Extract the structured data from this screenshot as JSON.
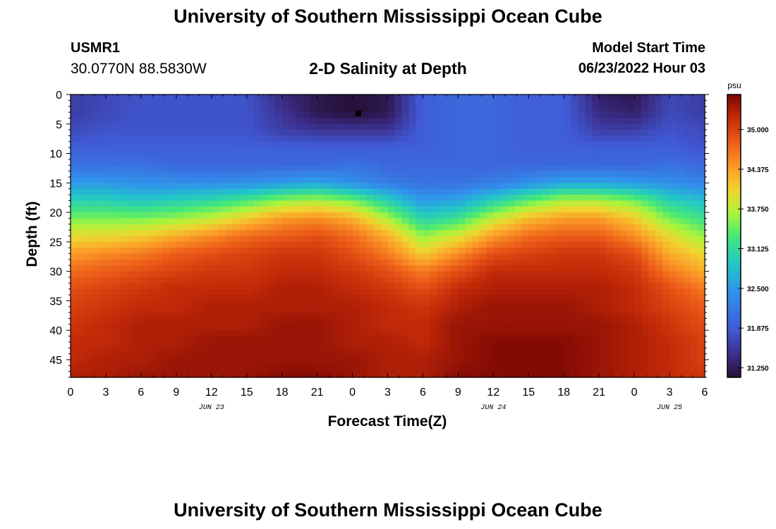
{
  "header": {
    "title": "University of Southern Mississippi Ocean Cube",
    "station_id": "USMR1",
    "station_coords": "30.0770N  88.5830W",
    "plot_title": "2-D Salinity at Depth",
    "start_label": "Model Start Time",
    "start_value": "06/23/2022 Hour 03"
  },
  "footer": {
    "title": "University of Southern Mississippi Ocean Cube"
  },
  "chart_data": {
    "type": "heatmap",
    "title": "2-D Salinity at Depth",
    "xlabel": "Forecast Time(Z)",
    "ylabel": "Depth (ft)",
    "x_ticks": [
      "0",
      "3",
      "6",
      "9",
      "12",
      "15",
      "18",
      "21",
      "0",
      "3",
      "6",
      "9",
      "12",
      "15",
      "18",
      "21",
      "0",
      "3",
      "6"
    ],
    "x_tick_hours": [
      0,
      3,
      6,
      9,
      12,
      15,
      18,
      21,
      24,
      27,
      30,
      33,
      36,
      39,
      42,
      45,
      48,
      51,
      54
    ],
    "xlim_hours": [
      0,
      54
    ],
    "date_labels": [
      {
        "label": "JUN 23",
        "hour": 12
      },
      {
        "label": "JUN 24",
        "hour": 36
      },
      {
        "label": "JUN 25",
        "hour": 51
      }
    ],
    "y_ticks": [
      "0",
      "5",
      "10",
      "15",
      "20",
      "25",
      "30",
      "35",
      "40",
      "45"
    ],
    "y_tick_values": [
      0,
      5,
      10,
      15,
      20,
      25,
      30,
      35,
      40,
      45
    ],
    "ylim": [
      0,
      48
    ],
    "y_inverted": true,
    "colorbar": {
      "unit": "psu",
      "ticks": [
        "35.000",
        "34.375",
        "33.750",
        "33.125",
        "32.500",
        "31.875",
        "31.250"
      ],
      "tick_values": [
        35.0,
        34.375,
        33.75,
        33.125,
        32.5,
        31.875,
        31.25
      ],
      "range": [
        31.1,
        35.55
      ]
    },
    "grid_columns_hours": [
      0,
      3,
      6,
      9,
      12,
      15,
      18,
      21,
      24,
      27,
      30,
      33,
      36,
      39,
      42,
      45,
      48,
      51,
      54
    ],
    "grid_rows_depth": [
      0,
      3,
      6,
      9,
      12,
      15,
      18,
      21,
      24,
      27,
      30,
      33,
      36,
      39,
      42,
      45,
      48
    ],
    "salinity_psu": [
      [
        31.6,
        31.7,
        31.8,
        31.8,
        31.8,
        31.8,
        31.4,
        31.2,
        31.1,
        31.2,
        31.9,
        32.0,
        32.0,
        31.9,
        31.9,
        31.3,
        31.2,
        31.7,
        31.6
      ],
      [
        31.6,
        31.7,
        31.8,
        31.8,
        31.8,
        31.8,
        31.5,
        31.2,
        31.1,
        31.2,
        31.9,
        32.0,
        32.0,
        31.9,
        31.9,
        31.4,
        31.3,
        31.7,
        31.6
      ],
      [
        31.7,
        31.8,
        31.8,
        31.8,
        31.8,
        31.8,
        31.6,
        31.5,
        31.5,
        31.5,
        31.9,
        32.0,
        32.0,
        31.9,
        31.9,
        31.6,
        31.6,
        31.8,
        31.7
      ],
      [
        31.9,
        31.9,
        31.9,
        31.9,
        31.9,
        31.9,
        31.9,
        31.9,
        31.9,
        31.9,
        31.9,
        32.0,
        32.0,
        31.9,
        31.9,
        31.9,
        31.9,
        31.9,
        31.8
      ],
      [
        32.1,
        32.1,
        32.1,
        32.0,
        32.0,
        32.0,
        32.0,
        32.0,
        32.1,
        32.0,
        32.0,
        32.0,
        32.0,
        32.0,
        32.0,
        32.0,
        32.0,
        32.1,
        32.0
      ],
      [
        32.5,
        32.5,
        32.4,
        32.4,
        32.4,
        32.4,
        32.5,
        32.6,
        32.4,
        32.2,
        32.1,
        32.1,
        32.2,
        32.4,
        32.6,
        32.6,
        32.5,
        32.4,
        32.3
      ],
      [
        33.0,
        33.0,
        32.9,
        33.0,
        33.1,
        33.3,
        33.6,
        33.7,
        33.5,
        33.0,
        32.5,
        32.6,
        33.0,
        33.4,
        33.7,
        33.7,
        33.5,
        33.0,
        32.8
      ],
      [
        33.5,
        33.5,
        33.5,
        33.6,
        33.8,
        34.1,
        34.4,
        34.5,
        34.3,
        33.7,
        33.0,
        33.2,
        33.8,
        34.2,
        34.4,
        34.4,
        34.1,
        33.5,
        33.2
      ],
      [
        34.0,
        34.0,
        34.1,
        34.3,
        34.5,
        34.7,
        34.8,
        34.9,
        34.7,
        34.3,
        33.6,
        33.9,
        34.4,
        34.7,
        34.8,
        34.8,
        34.5,
        34.0,
        33.6
      ],
      [
        34.4,
        34.5,
        34.6,
        34.8,
        34.9,
        35.0,
        35.1,
        35.1,
        34.9,
        34.6,
        34.1,
        34.5,
        34.9,
        35.0,
        35.1,
        35.1,
        34.9,
        34.3,
        34.0
      ],
      [
        34.7,
        34.8,
        34.9,
        35.0,
        35.1,
        35.1,
        35.2,
        35.2,
        35.1,
        34.9,
        34.6,
        34.9,
        35.2,
        35.2,
        35.2,
        35.2,
        35.1,
        34.6,
        34.3
      ],
      [
        34.9,
        35.0,
        35.1,
        35.2,
        35.2,
        35.2,
        35.3,
        35.3,
        35.2,
        35.1,
        34.9,
        35.2,
        35.3,
        35.3,
        35.3,
        35.3,
        35.2,
        34.9,
        34.6
      ],
      [
        35.0,
        35.1,
        35.2,
        35.2,
        35.3,
        35.3,
        35.3,
        35.3,
        35.3,
        35.2,
        35.1,
        35.3,
        35.4,
        35.4,
        35.4,
        35.3,
        35.2,
        35.0,
        34.8
      ],
      [
        35.1,
        35.2,
        35.3,
        35.3,
        35.3,
        35.3,
        35.4,
        35.4,
        35.3,
        35.2,
        35.2,
        35.4,
        35.4,
        35.4,
        35.4,
        35.4,
        35.3,
        35.1,
        34.9
      ],
      [
        35.2,
        35.2,
        35.3,
        35.3,
        35.4,
        35.4,
        35.4,
        35.4,
        35.3,
        35.3,
        35.2,
        35.4,
        35.5,
        35.5,
        35.5,
        35.4,
        35.3,
        35.2,
        35.0
      ],
      [
        35.2,
        35.3,
        35.3,
        35.4,
        35.4,
        35.4,
        35.4,
        35.4,
        35.4,
        35.3,
        35.3,
        35.4,
        35.5,
        35.5,
        35.5,
        35.4,
        35.3,
        35.2,
        35.0
      ],
      [
        35.3,
        35.3,
        35.4,
        35.4,
        35.4,
        35.4,
        35.5,
        35.5,
        35.4,
        35.3,
        35.3,
        35.5,
        35.5,
        35.5,
        35.5,
        35.4,
        35.3,
        35.2,
        35.1
      ]
    ],
    "marker": {
      "hour": 24.5,
      "depth": 3.2
    }
  }
}
